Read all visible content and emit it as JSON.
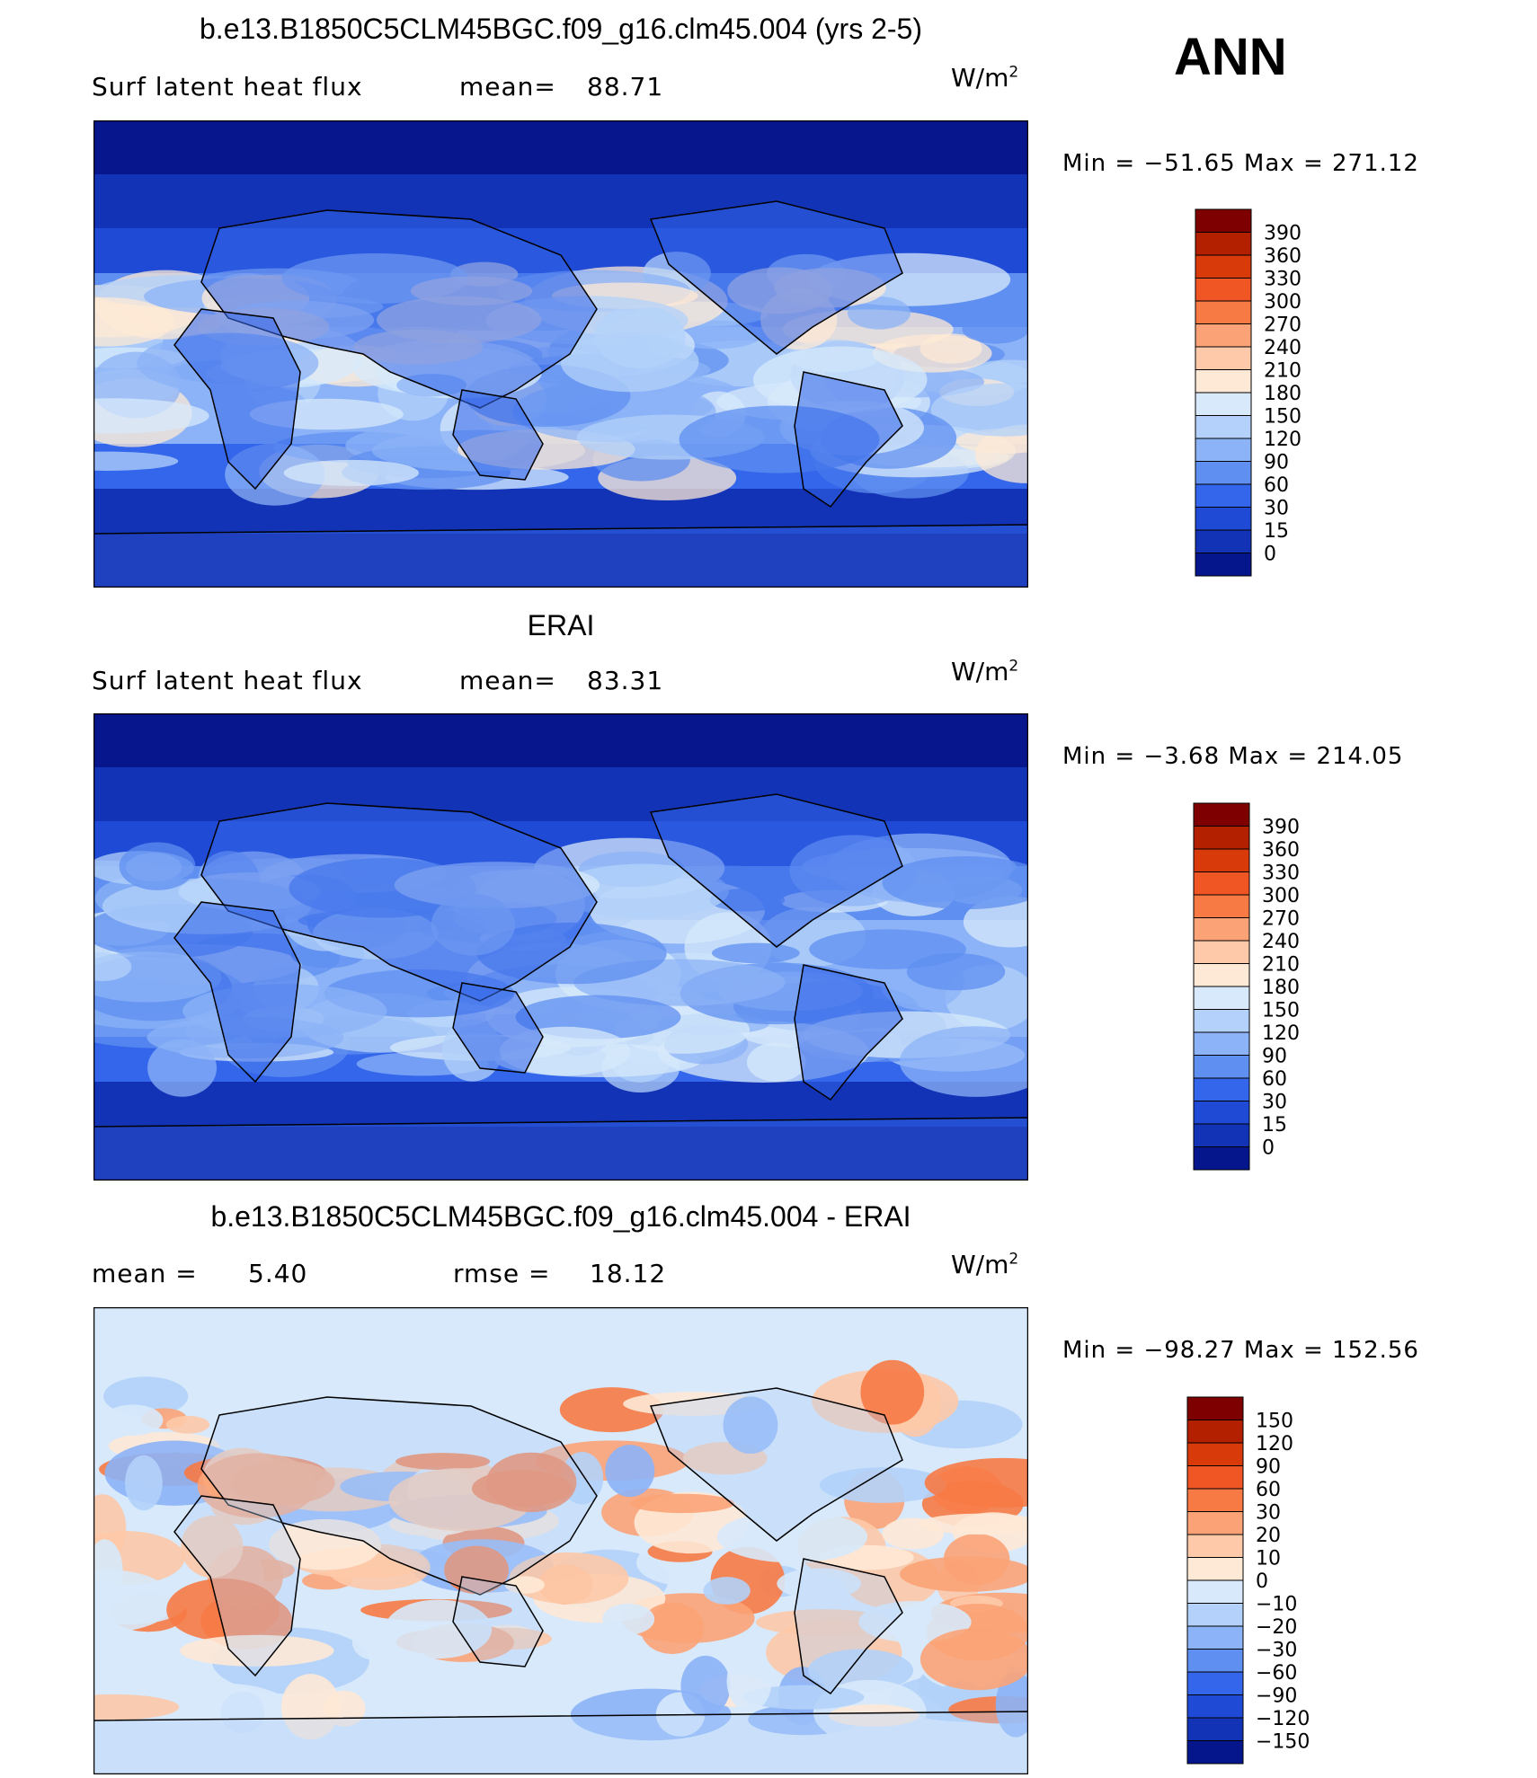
{
  "season_label": "ANN",
  "units_prefix": "W/m",
  "units_power": "2",
  "panels": [
    {
      "id": "model",
      "title": "b.e13.B1850C5CLM45BGC.f09_g16.clm45.004 (yrs 2-5)",
      "left_label": "Surf  latent  heat  flux",
      "stat_label": "mean=",
      "stat_value": "88.71",
      "min_max_text": "Min  =  −51.65  Max  =  271.12",
      "colorbar": {
        "labels": [
          "390",
          "360",
          "330",
          "300",
          "270",
          "240",
          "210",
          "180",
          "150",
          "120",
          "90",
          "60",
          "30",
          "15",
          "0"
        ],
        "colors": [
          "#7f0000",
          "#b22000",
          "#d93a0a",
          "#f05524",
          "#f77a45",
          "#fba377",
          "#fdc9a8",
          "#fee9d6",
          "#d7e9fb",
          "#b3d1fa",
          "#8cb3f7",
          "#5f8ff0",
          "#3366ea",
          "#1f4ad6",
          "#1233b5",
          "#05168c"
        ]
      },
      "map_palette": [
        "#08168e",
        "#1233b5",
        "#1f4ad6",
        "#3366ea",
        "#5f8ff0",
        "#8cb3f7",
        "#b3d1fa",
        "#d7e9fb",
        "#fee9d6"
      ]
    },
    {
      "id": "obs",
      "title": "ERAI",
      "left_label": "Surf  latent  heat  flux",
      "stat_label": "mean=",
      "stat_value": "83.31",
      "min_max_text": "Min  =    −3.68  Max  =  214.05",
      "colorbar": {
        "labels": [
          "390",
          "360",
          "330",
          "300",
          "270",
          "240",
          "210",
          "180",
          "150",
          "120",
          "90",
          "60",
          "30",
          "15",
          "0"
        ],
        "colors": [
          "#7f0000",
          "#b22000",
          "#d93a0a",
          "#f05524",
          "#f77a45",
          "#fba377",
          "#fdc9a8",
          "#fee9d6",
          "#d7e9fb",
          "#b3d1fa",
          "#8cb3f7",
          "#5f8ff0",
          "#3366ea",
          "#1f4ad6",
          "#1233b5",
          "#05168c"
        ]
      },
      "map_palette": [
        "#08168e",
        "#1233b5",
        "#1f4ad6",
        "#3366ea",
        "#5f8ff0",
        "#8cb3f7",
        "#b3d1fa",
        "#d7e9fb"
      ]
    },
    {
      "id": "diff",
      "title": "b.e13.B1850C5CLM45BGC.f09_g16.clm45.004 - ERAI",
      "mean_label": "mean  =",
      "mean_value": "5.40",
      "rmse_label": "rmse  =",
      "rmse_value": "18.12",
      "min_max_text": "Min  =  −98.27  Max  =  152.56",
      "colorbar": {
        "labels": [
          "150",
          "120",
          "90",
          "60",
          "30",
          "20",
          "10",
          "0",
          "−10",
          "−20",
          "−30",
          "−60",
          "−90",
          "−120",
          "−150"
        ],
        "colors": [
          "#7f0000",
          "#b22000",
          "#d93a0a",
          "#f05524",
          "#f77a45",
          "#fba377",
          "#fdc9a8",
          "#fee9d6",
          "#d7e9fb",
          "#b3d1fa",
          "#8cb3f7",
          "#5f8ff0",
          "#3366ea",
          "#1f4ad6",
          "#1233b5",
          "#05168c"
        ]
      },
      "map_palette": [
        "#d7e9fb",
        "#b3d1fa",
        "#8cb3f7",
        "#fee9d6",
        "#fdc9a8",
        "#fba377",
        "#f77a45"
      ]
    }
  ]
}
